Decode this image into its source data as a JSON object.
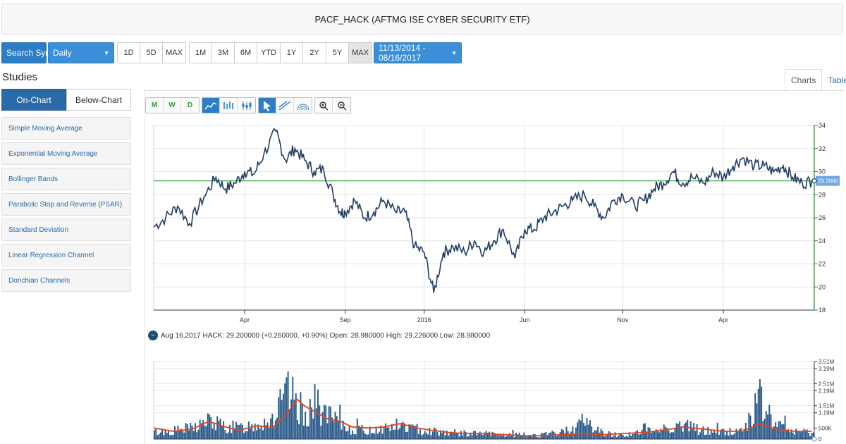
{
  "header": {
    "title": "PACF_HACK (AFTMG ISE CYBER SECURITY ETF)"
  },
  "toolbar": {
    "search_label": "Search Symbol",
    "interval": "Daily",
    "ranges_a": [
      "1D",
      "5D",
      "MAX"
    ],
    "ranges_b": [
      "1M",
      "3M",
      "6M",
      "YTD",
      "1Y",
      "2Y",
      "5Y",
      "MAX"
    ],
    "active_range": "MAX",
    "date_range": "11/13/2014 - 08/16/2017"
  },
  "studies": {
    "title": "Studies",
    "tabs": [
      "On-Chart",
      "Below-Chart"
    ],
    "items": [
      "Simple Moving Average",
      "Exponential Moving Average",
      "Bollinger Bands",
      "Parabolic Stop and Reverse (PSAR)",
      "Standard Deviation",
      "Linear Regression Channel",
      "Donchian Channels"
    ]
  },
  "view_tabs": [
    "Charts",
    "Table"
  ],
  "tool_icons": {
    "group1": [
      "M",
      "W",
      "D"
    ],
    "group2": [
      "line-chart-icon",
      "ohlc-chart-icon",
      "candlestick-chart-icon"
    ],
    "group3": [
      "pointer-icon",
      "trendline-icon",
      "fibonacci-icon"
    ],
    "group4": [
      "zoom-in-icon",
      "zoom-out-icon"
    ]
  },
  "info_line": "Aug 16,2017 HACK: 29.200000 (+0.260000, +0.90%) Open: 28.980000 High: 29.226000 Low: 28.980000",
  "colors": {
    "price_line": "#1f3c63",
    "reference_line": "#3aa23a",
    "volume_bar": "#2a5a8a",
    "volume_ma": "#e8431a",
    "axis": "#2e7d32",
    "price_tag": "#6fa8dc"
  },
  "chart_data": [
    {
      "type": "line",
      "x_axis_labels": [
        "Apr",
        "Sep",
        "2016",
        "Jun",
        "Nov",
        "Apr"
      ],
      "x_label_positions": [
        2015.25,
        2015.67,
        2016.0,
        2016.42,
        2016.83,
        2017.25
      ],
      "x_range": [
        2014.87,
        2017.63
      ],
      "ylim": [
        18,
        34
      ],
      "yticks": [
        18,
        20,
        22,
        24,
        26,
        28,
        30,
        32,
        34
      ],
      "reference_value": 29.2,
      "last_value_label": "29.2000",
      "series": [
        {
          "x": [
            2014.87,
            2014.92,
            2014.97,
            2015.02,
            2015.08,
            2015.13,
            2015.17,
            2015.21,
            2015.25,
            2015.29,
            2015.33,
            2015.38,
            2015.42,
            2015.46,
            2015.5,
            2015.54,
            2015.58,
            2015.62,
            2015.65,
            2015.67,
            2015.71,
            2015.75,
            2015.79,
            2015.83,
            2015.88,
            2015.92,
            2015.96,
            2016.0,
            2016.04,
            2016.08,
            2016.12,
            2016.17,
            2016.21,
            2016.25,
            2016.29,
            2016.33,
            2016.38,
            2016.42,
            2016.46,
            2016.5,
            2016.54,
            2016.58,
            2016.62,
            2016.67,
            2016.71,
            2016.75,
            2016.79,
            2016.83,
            2016.88,
            2016.92,
            2016.96,
            2017.0,
            2017.04,
            2017.08,
            2017.12,
            2017.17,
            2017.21,
            2017.25,
            2017.29,
            2017.33,
            2017.38,
            2017.42,
            2017.46,
            2017.5,
            2017.54,
            2017.58,
            2017.62
          ],
          "values": [
            25.2,
            26.0,
            27.0,
            25.5,
            27.8,
            29.5,
            28.5,
            29.0,
            30.0,
            29.8,
            31.5,
            33.5,
            31.0,
            32.0,
            31.0,
            30.0,
            30.2,
            28.0,
            26.5,
            26.5,
            27.5,
            26.0,
            26.5,
            27.5,
            26.5,
            26.5,
            23.5,
            23.0,
            19.5,
            23.0,
            23.5,
            23.0,
            24.0,
            23.0,
            24.0,
            25.0,
            22.5,
            25.0,
            25.0,
            26.0,
            26.5,
            27.0,
            27.5,
            28.0,
            27.0,
            26.0,
            27.5,
            28.0,
            27.0,
            27.5,
            28.5,
            29.0,
            30.0,
            29.0,
            29.5,
            29.0,
            30.0,
            29.5,
            30.5,
            31.2,
            30.5,
            30.5,
            30.0,
            30.5,
            29.5,
            29.0,
            29.2
          ]
        }
      ]
    },
    {
      "type": "bar",
      "x_range": [
        2014.87,
        2017.63
      ],
      "ylim": [
        0,
        3.51
      ],
      "ytick_labels": [
        "0",
        "500K",
        "1.19M",
        "1.51M",
        "2.19M",
        "2.51M",
        "3.19M",
        "3.51M"
      ],
      "ytick_values": [
        0,
        0.5,
        1.19,
        1.51,
        2.19,
        2.51,
        3.19,
        3.51
      ],
      "series": [
        {
          "name": "volume",
          "x": [
            2014.87,
            2014.95,
            2015.03,
            2015.1,
            2015.17,
            2015.23,
            2015.3,
            2015.37,
            2015.43,
            2015.47,
            2015.5,
            2015.55,
            2015.6,
            2015.65,
            2015.7,
            2015.77,
            2015.83,
            2015.9,
            2015.97,
            2016.03,
            2016.1,
            2016.17,
            2016.25,
            2016.33,
            2016.42,
            2016.5,
            2016.58,
            2016.67,
            2016.75,
            2016.83,
            2016.92,
            2017.0,
            2017.08,
            2017.17,
            2017.25,
            2017.33,
            2017.4,
            2017.47,
            2017.55,
            2017.62
          ],
          "values": [
            0.5,
            0.6,
            0.8,
            1.3,
            0.9,
            0.8,
            1.1,
            1.5,
            3.2,
            2.5,
            1.8,
            2.6,
            1.6,
            1.1,
            0.7,
            0.6,
            0.8,
            1.0,
            0.7,
            0.6,
            0.5,
            0.4,
            0.4,
            0.3,
            0.3,
            0.3,
            0.5,
            1.3,
            0.4,
            0.3,
            0.5,
            0.8,
            1.0,
            0.6,
            0.5,
            0.6,
            2.8,
            1.0,
            0.5,
            0.5
          ]
        },
        {
          "name": "volume moving average",
          "x": [
            2014.87,
            2014.95,
            2015.03,
            2015.1,
            2015.17,
            2015.23,
            2015.3,
            2015.37,
            2015.43,
            2015.47,
            2015.5,
            2015.55,
            2015.6,
            2015.65,
            2015.7,
            2015.77,
            2015.83,
            2015.9,
            2015.97,
            2016.03,
            2016.1,
            2016.17,
            2016.25,
            2016.33,
            2016.42,
            2016.5,
            2016.58,
            2016.67,
            2016.75,
            2016.83,
            2016.92,
            2017.0,
            2017.08,
            2017.17,
            2017.25,
            2017.33,
            2017.4,
            2017.47,
            2017.55,
            2017.62
          ],
          "values": [
            0.5,
            0.35,
            0.45,
            0.8,
            0.55,
            0.4,
            0.6,
            0.55,
            1.2,
            1.8,
            1.5,
            1.2,
            0.9,
            0.8,
            0.55,
            0.5,
            0.55,
            0.7,
            0.5,
            0.4,
            0.3,
            0.25,
            0.25,
            0.2,
            0.15,
            0.15,
            0.2,
            0.25,
            0.2,
            0.25,
            0.3,
            0.4,
            0.55,
            0.45,
            0.35,
            0.35,
            0.7,
            0.45,
            0.35,
            0.35
          ]
        }
      ]
    }
  ]
}
